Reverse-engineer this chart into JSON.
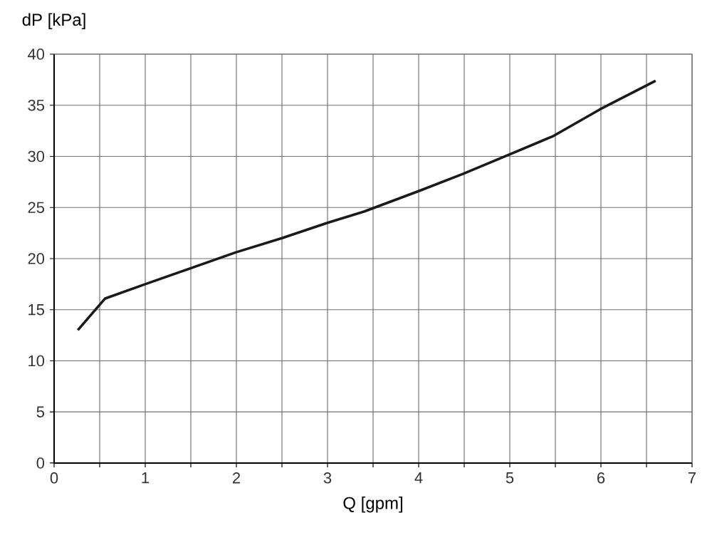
{
  "chart_data": {
    "type": "line",
    "xlabel": "Q [gpm]",
    "ylabel": "dP [kPa]",
    "x": [
      0.26,
      0.56,
      1.0,
      1.99,
      2.5,
      3.0,
      3.4,
      4.0,
      4.49,
      5.0,
      5.48,
      5.99,
      6.6
    ],
    "series": [
      {
        "color": "#1a1a1a",
        "values": [
          13.0,
          16.1,
          17.5,
          20.6,
          22.0,
          23.5,
          24.6,
          26.6,
          28.3,
          30.2,
          32.0,
          34.6,
          37.4
        ]
      }
    ],
    "xlim": [
      0,
      7
    ],
    "ylim": [
      0,
      40
    ],
    "xticks": [
      0,
      {
        "value": 0.5,
        "label": null
      },
      1,
      {
        "value": 1.5,
        "label": null
      },
      2,
      {
        "value": 2.5,
        "label": null
      },
      3,
      {
        "value": 3.5,
        "label": null
      },
      4,
      {
        "value": 4.5,
        "label": null
      },
      5,
      {
        "value": 5.5,
        "label": null
      },
      6,
      {
        "value": 6.5,
        "label": null
      },
      7
    ],
    "yticks": [
      0,
      5,
      10,
      15,
      20,
      25,
      30,
      35,
      40
    ],
    "grid": true,
    "marker": "none",
    "line_style": "solid"
  }
}
